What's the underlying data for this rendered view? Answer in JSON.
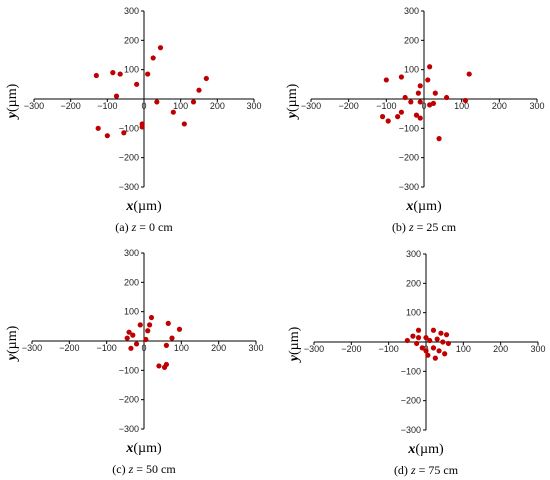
{
  "point_color": "#c00000",
  "axis_color": "#000000",
  "chart_data": [
    {
      "type": "scatter",
      "caption": {
        "letter": "(a)",
        "var": "z",
        "rest": " = 0 cm"
      },
      "xlabel": {
        "var": "x",
        "unit": "(µm)"
      },
      "ylabel": {
        "var": "y",
        "unit": "(µm)"
      },
      "xlim": [
        -300,
        300
      ],
      "ylim": [
        -300,
        300
      ],
      "xticks": [
        -300,
        -200,
        -100,
        0,
        100,
        200,
        300
      ],
      "yticks": [
        300,
        200,
        100,
        -100,
        -200,
        -300
      ],
      "points": [
        [
          45,
          175
        ],
        [
          25,
          140
        ],
        [
          -130,
          80
        ],
        [
          -85,
          90
        ],
        [
          -65,
          85
        ],
        [
          10,
          85
        ],
        [
          170,
          70
        ],
        [
          -20,
          50
        ],
        [
          -75,
          10
        ],
        [
          35,
          -10
        ],
        [
          150,
          30
        ],
        [
          135,
          -10
        ],
        [
          -125,
          -100
        ],
        [
          -100,
          -125
        ],
        [
          -55,
          -115
        ],
        [
          -5,
          -85
        ],
        [
          -5,
          -95
        ],
        [
          80,
          -45
        ],
        [
          110,
          -85
        ]
      ]
    },
    {
      "type": "scatter",
      "caption": {
        "letter": "(b)",
        "var": "z",
        "rest": " = 25 cm"
      },
      "xlabel": {
        "var": "x",
        "unit": "(µm)"
      },
      "ylabel": {
        "var": "y",
        "unit": "(µm)"
      },
      "xlim": [
        -300,
        300
      ],
      "ylim": [
        -300,
        300
      ],
      "xticks": [
        -300,
        -200,
        -100,
        0,
        100,
        200,
        300
      ],
      "yticks": [
        300,
        200,
        100,
        -100,
        -200,
        -300
      ],
      "points": [
        [
          15,
          110
        ],
        [
          120,
          85
        ],
        [
          -100,
          65
        ],
        [
          -60,
          75
        ],
        [
          10,
          65
        ],
        [
          -10,
          45
        ],
        [
          30,
          20
        ],
        [
          -15,
          20
        ],
        [
          -50,
          5
        ],
        [
          60,
          5
        ],
        [
          110,
          -5
        ],
        [
          -10,
          -10
        ],
        [
          -60,
          -45
        ],
        [
          25,
          -15
        ],
        [
          -110,
          -60
        ],
        [
          -95,
          -75
        ],
        [
          -70,
          -60
        ],
        [
          -20,
          -55
        ],
        [
          -10,
          -65
        ],
        [
          40,
          -135
        ],
        [
          15,
          -20
        ],
        [
          -35,
          -10
        ]
      ]
    },
    {
      "type": "scatter",
      "caption": {
        "letter": "(c)",
        "var": "z",
        "rest": " = 50 cm"
      },
      "xlabel": {
        "var": "x",
        "unit": "(µm)"
      },
      "ylabel": {
        "var": "y",
        "unit": "(µm)"
      },
      "xlim": [
        -300,
        300
      ],
      "ylim": [
        -300,
        300
      ],
      "xticks": [
        -300,
        -200,
        -100,
        0,
        100,
        200,
        300
      ],
      "yticks": [
        300,
        200,
        100,
        -100,
        -200,
        -300
      ],
      "points": [
        [
          20,
          80
        ],
        [
          15,
          55
        ],
        [
          -10,
          55
        ],
        [
          10,
          35
        ],
        [
          -40,
          30
        ],
        [
          -30,
          20
        ],
        [
          65,
          60
        ],
        [
          95,
          40
        ],
        [
          75,
          10
        ],
        [
          -20,
          -10
        ],
        [
          60,
          -15
        ],
        [
          -35,
          -25
        ],
        [
          5,
          5
        ],
        [
          60,
          -80
        ],
        [
          40,
          -85
        ],
        [
          55,
          -90
        ],
        [
          -45,
          10
        ]
      ]
    },
    {
      "type": "scatter",
      "caption": {
        "letter": "(d)",
        "var": "z",
        "rest": " = 75 cm"
      },
      "xlabel": {
        "var": "x",
        "unit": "(µm)"
      },
      "ylabel": {
        "var": "y",
        "unit": "(µm)"
      },
      "xlim": [
        -300,
        300
      ],
      "ylim": [
        -300,
        300
      ],
      "xticks": [
        -300,
        -200,
        -100,
        0,
        100,
        200,
        300
      ],
      "yticks": [
        300,
        200,
        100,
        -100,
        -200,
        -300
      ],
      "points": [
        [
          -20,
          40
        ],
        [
          20,
          40
        ],
        [
          40,
          30
        ],
        [
          55,
          25
        ],
        [
          -35,
          20
        ],
        [
          -20,
          15
        ],
        [
          0,
          15
        ],
        [
          30,
          10
        ],
        [
          10,
          5
        ],
        [
          -50,
          5
        ],
        [
          -25,
          -5
        ],
        [
          45,
          0
        ],
        [
          60,
          -5
        ],
        [
          20,
          -20
        ],
        [
          0,
          -30
        ],
        [
          35,
          -30
        ],
        [
          50,
          -40
        ],
        [
          -10,
          -20
        ],
        [
          25,
          -55
        ],
        [
          5,
          -45
        ]
      ]
    }
  ]
}
